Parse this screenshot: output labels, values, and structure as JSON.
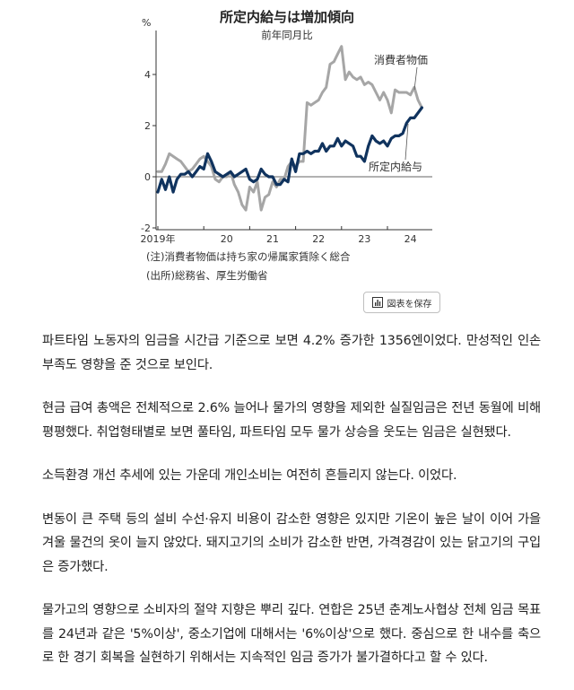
{
  "chart_data": {
    "type": "line",
    "title": "所定内給与は増加傾向",
    "subtitle": "前年同月比",
    "y_unit": "%",
    "ylim": [
      -2,
      5.5
    ],
    "y_ticks": [
      -2,
      0,
      2,
      4
    ],
    "y_tick_labels": [
      "-2",
      "0",
      "2",
      "4"
    ],
    "x_tick_labels": [
      "2019年",
      "20",
      "21",
      "22",
      "23",
      "24"
    ],
    "grid": false,
    "series": [
      {
        "name": "消費者物価",
        "color": "#a6a6a6",
        "x": [
          "2019-01",
          "2019-02",
          "2019-03",
          "2019-04",
          "2019-05",
          "2019-06",
          "2019-07",
          "2019-08",
          "2019-09",
          "2019-10",
          "2019-11",
          "2019-12",
          "2020-01",
          "2020-02",
          "2020-03",
          "2020-04",
          "2020-05",
          "2020-06",
          "2020-07",
          "2020-08",
          "2020-09",
          "2020-10",
          "2020-11",
          "2020-12",
          "2021-01",
          "2021-02",
          "2021-03",
          "2021-04",
          "2021-05",
          "2021-06",
          "2021-07",
          "2021-08",
          "2021-09",
          "2021-10",
          "2021-11",
          "2021-12",
          "2022-01",
          "2022-02",
          "2022-03",
          "2022-04",
          "2022-05",
          "2022-06",
          "2022-07",
          "2022-08",
          "2022-09",
          "2022-10",
          "2022-11",
          "2022-12",
          "2023-01",
          "2023-02",
          "2023-03",
          "2023-04",
          "2023-05",
          "2023-06",
          "2023-07",
          "2023-08",
          "2023-09",
          "2023-10",
          "2023-11",
          "2023-12",
          "2024-01",
          "2024-02",
          "2024-03",
          "2024-04",
          "2024-05",
          "2024-06",
          "2024-07",
          "2024-08",
          "2024-09",
          "2024-10"
        ],
        "values": [
          0.2,
          0.2,
          0.5,
          0.9,
          0.8,
          0.7,
          0.6,
          0.4,
          0.2,
          0.3,
          0.5,
          0.7,
          0.8,
          0.6,
          0.4,
          -0.1,
          -0.2,
          0.0,
          0.0,
          0.2,
          -0.3,
          -0.6,
          -1.1,
          -1.3,
          -0.4,
          -0.6,
          -0.2,
          -1.3,
          -0.8,
          -0.7,
          -0.2,
          -0.4,
          -0.1,
          -0.1,
          0.4,
          0.6,
          0.4,
          0.6,
          0.6,
          2.9,
          2.8,
          2.9,
          3.0,
          3.3,
          3.5,
          4.4,
          4.5,
          4.8,
          5.1,
          3.8,
          4.1,
          3.9,
          3.8,
          3.9,
          3.6,
          3.7,
          3.6,
          3.3,
          3.0,
          3.3,
          3.0,
          2.5,
          3.4,
          3.3,
          3.3,
          3.3,
          3.2,
          3.5,
          3.0,
          2.7
        ]
      },
      {
        "name": "所定内給与",
        "color": "#10335e",
        "x": [
          "2019-01",
          "2019-02",
          "2019-03",
          "2019-04",
          "2019-05",
          "2019-06",
          "2019-07",
          "2019-08",
          "2019-09",
          "2019-10",
          "2019-11",
          "2019-12",
          "2020-01",
          "2020-02",
          "2020-03",
          "2020-04",
          "2020-05",
          "2020-06",
          "2020-07",
          "2020-08",
          "2020-09",
          "2020-10",
          "2020-11",
          "2020-12",
          "2021-01",
          "2021-02",
          "2021-03",
          "2021-04",
          "2021-05",
          "2021-06",
          "2021-07",
          "2021-08",
          "2021-09",
          "2021-10",
          "2021-11",
          "2021-12",
          "2022-01",
          "2022-02",
          "2022-03",
          "2022-04",
          "2022-05",
          "2022-06",
          "2022-07",
          "2022-08",
          "2022-09",
          "2022-10",
          "2022-11",
          "2022-12",
          "2023-01",
          "2023-02",
          "2023-03",
          "2023-04",
          "2023-05",
          "2023-06",
          "2023-07",
          "2023-08",
          "2023-09",
          "2023-10",
          "2023-11",
          "2023-12",
          "2024-01",
          "2024-02",
          "2024-03",
          "2024-04",
          "2024-05",
          "2024-06",
          "2024-07",
          "2024-08",
          "2024-09",
          "2024-10"
        ],
        "values": [
          -0.6,
          -0.1,
          -0.5,
          0.0,
          -0.6,
          -0.1,
          0.1,
          0.1,
          0.2,
          0.0,
          0.2,
          0.4,
          0.3,
          0.9,
          0.6,
          0.2,
          0.1,
          0.0,
          0.1,
          0.2,
          0.0,
          0.1,
          0.2,
          0.3,
          -0.1,
          -0.2,
          -0.1,
          0.3,
          0.1,
          0.0,
          0.0,
          -0.3,
          -0.3,
          -0.1,
          -0.2,
          0.7,
          0.2,
          0.9,
          0.9,
          1.0,
          0.9,
          1.0,
          1.0,
          1.3,
          1.0,
          1.2,
          1.2,
          1.5,
          1.2,
          1.4,
          1.3,
          1.2,
          0.8,
          0.8,
          0.6,
          1.2,
          1.6,
          1.4,
          1.3,
          1.4,
          1.2,
          1.5,
          1.6,
          1.6,
          1.7,
          2.1,
          2.3,
          2.3,
          2.5,
          2.7
        ]
      }
    ],
    "notes": [
      "(注)消費者物価は持ち家の帰属家賃除く総合",
      "(出所)総務省、厚生労働省"
    ]
  },
  "save_button": {
    "label": "図表を保存",
    "icon": "bar-chart-icon"
  },
  "article": {
    "paragraphs": [
      "파트타임 노동자의 임금을 시간급 기준으로 보면 4.2% 증가한 1356엔이었다. 만성적인 인손 부족도 영향을 준 것으로 보인다.",
      "현금 급여 총액은 전체적으로 2.6% 늘어나 물가의 영향을 제외한 실질임금은 전년 동월에 비해 평평했다. 취업형태별로 보면 풀타임, 파트타임 모두 물가 상승을 웃도는 임금은 실현됐다.",
      "소득환경 개선 추세에 있는 가운데 개인소비는 여전히 흔들리지 않는다. 이었다.",
      "변동이 큰 주택 등의 설비 수선·유지 비용이 감소한 영향은 있지만 기온이 높은 날이 이어 가을 겨울 물건의 옷이 늘지 않았다. 돼지고기의 소비가 감소한 반면, 가격경감이 있는 닭고기의 구입은 증가했다.",
      "물가고의 영향으로 소비자의 절약 지향은 뿌리 깊다. 연합은 25년 춘계노사협상 전체 임금 목표를 24년과 같은 '5%이상', 중소기업에 대해서는 '6%이상'으로 했다. 중심으로 한 내수를 축으로 한 경기 회복을 실현하기 위해서는 지속적인 임금 증가가 불가결하다고 할 수 있다."
    ]
  }
}
